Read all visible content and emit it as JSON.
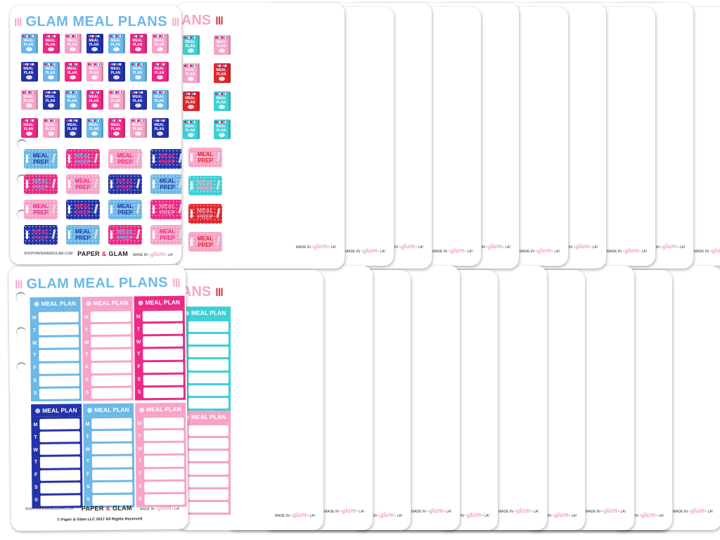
{
  "product": {
    "title": "GLAM MEAL PLANS",
    "title_fragment": "ANS",
    "title_fragment_s": "S",
    "cutlery_icon": "fork-knife-spoon-icon"
  },
  "palette": {
    "light_blue": "#6cb8e6",
    "pink": "#f7a3c8",
    "hot_pink": "#ec2a86",
    "navy": "#2433a8",
    "teal": "#3fd0d4",
    "purple": "#b56ad8",
    "red": "#e0262e",
    "orange": "#f58220",
    "plum": "#7a1d55",
    "tan": "#c49a62",
    "mint": "#5fd98e",
    "dark_teal": "#179c96",
    "black": "#1a1a1a"
  },
  "top_sheets": {
    "book_label": "MEAL PLAN",
    "prep_label_line1": "MEAL",
    "prep_label_line2": "PREP",
    "front": {
      "book_colors": [
        [
          "#6cb8e6",
          "#ec2a86",
          "#f7a3c8",
          "#2433a8",
          "#6cb8e6",
          "#ec2a86",
          "#f7a3c8"
        ],
        [
          "#2433a8",
          "#6cb8e6",
          "#ec2a86",
          "#f7a3c8",
          "#2433a8",
          "#6cb8e6",
          "#ec2a86"
        ],
        [
          "#f7a3c8",
          "#2433a8",
          "#6cb8e6",
          "#ec2a86",
          "#f7a3c8",
          "#2433a8",
          "#6cb8e6"
        ],
        [
          "#ec2a86",
          "#f7a3c8",
          "#2433a8",
          "#6cb8e6",
          "#ec2a86",
          "#f7a3c8",
          "#2433a8"
        ]
      ],
      "prep_stickers": [
        {
          "bg": "#6cb8e6",
          "fg": "#2433a8"
        },
        {
          "bg": "#ec2a86",
          "fg": "#6cb8e6"
        },
        {
          "bg": "#f7a3c8",
          "fg": "#ec2a86"
        },
        {
          "bg": "#2433a8",
          "fg": "#ec2a86"
        },
        {
          "bg": "#ec2a86",
          "fg": "#6cb8e6"
        },
        {
          "bg": "#f7a3c8",
          "fg": "#ec2a86"
        },
        {
          "bg": "#2433a8",
          "fg": "#ec2a86"
        },
        {
          "bg": "#6cb8e6",
          "fg": "#2433a8"
        },
        {
          "bg": "#f7a3c8",
          "fg": "#ec2a86"
        },
        {
          "bg": "#2433a8",
          "fg": "#ec2a86"
        },
        {
          "bg": "#6cb8e6",
          "fg": "#2433a8"
        },
        {
          "bg": "#ec2a86",
          "fg": "#f7a3c8"
        },
        {
          "bg": "#2433a8",
          "fg": "#ec2a86"
        },
        {
          "bg": "#6cb8e6",
          "fg": "#2433a8"
        },
        {
          "bg": "#ec2a86",
          "fg": "#6cb8e6"
        },
        {
          "bg": "#f7a3c8",
          "fg": "#ec2a86"
        }
      ]
    },
    "back": [
      {
        "title_color": "#f7a3c8",
        "cutlery_color": "#e0262e",
        "colors": [
          "#3fd0d4",
          "#f7a3c8",
          "#e0262e",
          "#3fd0d4"
        ],
        "prep": [
          {
            "bg": "#f7a3c8",
            "fg": "#e0262e"
          },
          {
            "bg": "#3fd0d4",
            "fg": "#f7a3c8"
          },
          {
            "bg": "#e0262e",
            "fg": "#f7a3c8"
          },
          {
            "bg": "#f7a3c8",
            "fg": "#e0262e"
          }
        ]
      },
      {
        "title_color": "#5fd98e",
        "cutlery_color": "#b56ad8",
        "colors": [
          "#b56ad8",
          "#3fd0d4",
          "#5fd98e",
          "#b56ad8"
        ],
        "prep": [
          {
            "bg": "#ec2a86",
            "fg": "#3fd0d4"
          },
          {
            "bg": "#5fd98e",
            "fg": "#ec2a86"
          },
          {
            "bg": "#b56ad8",
            "fg": "#5fd98e"
          },
          {
            "bg": "#3fd0d4",
            "fg": "#b56ad8"
          }
        ]
      },
      {
        "title_color": "#b56ad8",
        "cutlery_color": "#3fd0d4",
        "colors": [
          "#3fd0d4",
          "#ec2a86",
          "#b56ad8",
          "#3fd0d4"
        ],
        "prep": [
          {
            "bg": "#ec2a86",
            "fg": "#b56ad8"
          },
          {
            "bg": "#b56ad8",
            "fg": "#ec2a86"
          },
          {
            "bg": "#3fd0d4",
            "fg": "#b56ad8"
          },
          {
            "bg": "#ec2a86",
            "fg": "#3fd0d4"
          }
        ]
      },
      {
        "title_color": "#3fd0d4",
        "cutlery_color": "#ec2a86",
        "colors": [
          "#f7a3c8",
          "#ec2a86",
          "#3fd0d4",
          "#f7a3c8"
        ],
        "prep": [
          {
            "bg": "#ec2a86",
            "fg": "#f7a3c8"
          },
          {
            "bg": "#3fd0d4",
            "fg": "#e0262e"
          },
          {
            "bg": "#f7a3c8",
            "fg": "#3fd0d4"
          },
          {
            "bg": "#f7a3c8",
            "fg": "#ec2a86"
          }
        ]
      },
      {
        "title_color": "#f06fb5",
        "cutlery_color": "#ec2a86",
        "colors": [
          "#3fd0d4",
          "#f58220",
          "#ec2a86",
          "#3fd0d4"
        ],
        "prep": [
          {
            "bg": "#f58220",
            "fg": "#f7a3c8"
          },
          {
            "bg": "#ec2a86",
            "fg": "#3fd0d4"
          },
          {
            "bg": "#ec2a86",
            "fg": "#f58220"
          },
          {
            "bg": "#3fd0d4",
            "fg": "#ec2a86"
          }
        ]
      },
      {
        "title_color": "#2433a8",
        "cutlery_color": "#e0262e",
        "colors": [
          "#6cb8e6",
          "#ec2a86",
          "#2433a8",
          "#e0262e"
        ],
        "prep": [
          {
            "bg": "#f06fb5",
            "fg": "#2433a8"
          },
          {
            "bg": "#2433a8",
            "fg": "#e0262e"
          },
          {
            "bg": "#e0262e",
            "fg": "#2433a8"
          },
          {
            "bg": "#6cb8e6",
            "fg": "#f7a3c8"
          }
        ]
      },
      {
        "title_color": "#ec2a86",
        "cutlery_color": "#f7a3c8",
        "colors": [
          "#f7a3c8",
          "#ec2a86",
          "#1a1a1a",
          "#ec2a86"
        ],
        "prep": [
          {
            "bg": "#ec2a86",
            "fg": "#1a1a1a"
          },
          {
            "bg": "#f7a3c8",
            "fg": "#ec2a86"
          },
          {
            "bg": "#1a1a1a",
            "fg": "#ec2a86"
          },
          {
            "bg": "#ec2a86",
            "fg": "#1a1a1a"
          }
        ]
      },
      {
        "title_color": "#179c96",
        "cutlery_color": "#f58220",
        "colors": [
          "#ec2a86",
          "#179c96",
          "#f58220",
          "#7a1d55"
        ],
        "prep": [
          {
            "bg": "#ec2a86",
            "fg": "#7a1d55"
          },
          {
            "bg": "#179c96",
            "fg": "#ec2a86"
          },
          {
            "bg": "#f58220",
            "fg": "#179c96"
          },
          {
            "bg": "#7a1d55",
            "fg": "#ec2a86"
          }
        ]
      },
      {
        "title_color": "#f58220",
        "cutlery_color": "#b56ad8",
        "colors": [
          "#ec2a86",
          "#f58220",
          "#b56ad8",
          "#f58220"
        ],
        "prep": [
          {
            "bg": "#f58220",
            "fg": "#1a1a1a"
          },
          {
            "bg": "#ec2a86",
            "fg": "#f58220"
          },
          {
            "bg": "#b56ad8",
            "fg": "#f58220"
          },
          {
            "bg": "#f58220",
            "fg": "#1a1a1a"
          }
        ]
      },
      {
        "title_color": "#7a1d55",
        "cutlery_color": "#c49a62",
        "colors": [
          "#c49a62",
          "#ec2a86",
          "#7a1d55",
          "#c49a62"
        ],
        "prep": [
          {
            "bg": "#ec2a86",
            "fg": "#7a1d55"
          },
          {
            "bg": "#7a1d55",
            "fg": "#ec2a86"
          },
          {
            "bg": "#c49a62",
            "fg": "#f58220"
          },
          {
            "bg": "#f58220",
            "fg": "#7a1d55"
          }
        ]
      },
      {
        "title_color": "#e0262e",
        "cutlery_color": "#5fd98e",
        "colors": [
          "#ec2a86",
          "#e0262e",
          "#5fd98e",
          "#e0262e"
        ],
        "prep": [
          {
            "bg": "#e0262e",
            "fg": "#5fd98e"
          },
          {
            "bg": "#ec2a86",
            "fg": "#5fd98e"
          },
          {
            "bg": "#5fd98e",
            "fg": "#ec2a86"
          },
          {
            "bg": "#e0262e",
            "fg": "#5fd98e"
          }
        ]
      }
    ]
  },
  "bottom_sheets": {
    "plan_label": "MEAL PLAN",
    "days": [
      "M",
      "T",
      "W",
      "T",
      "F",
      "S",
      "S"
    ],
    "front_plans": [
      {
        "color": "#6cb8e6"
      },
      {
        "color": "#f7a3c8"
      },
      {
        "color": "#ec2a86"
      },
      {
        "color": "#2433a8"
      },
      {
        "color": "#6cb8e6"
      },
      {
        "color": "#f7a3c8"
      }
    ],
    "back": [
      {
        "title_color": "#f7a3c8",
        "cutlery_color": "#e0262e",
        "top": "#3fd0d4",
        "bottom": "#f7a3c8"
      },
      {
        "title_color": "#5fd98e",
        "cutlery_color": "#b56ad8",
        "top": "#b56ad8",
        "bottom": "#3fd0d4"
      },
      {
        "title_color": "#b56ad8",
        "cutlery_color": "#3fd0d4",
        "top": "#3fd0d4",
        "bottom": "#f06fb5"
      },
      {
        "title_color": "#3fd0d4",
        "cutlery_color": "#ec2a86",
        "top": "#f06fb5",
        "bottom": "#f7a3c8"
      },
      {
        "title_color": "#f06fb5",
        "cutlery_color": "#ec2a86",
        "top": "#ec2a86",
        "bottom": "#3fd0d4"
      },
      {
        "title_color": "#2433a8",
        "cutlery_color": "#e0262e",
        "top": "#e0262e",
        "bottom": "#6cb8e6"
      },
      {
        "title_color": "#ec2a86",
        "cutlery_color": "#f7a3c8",
        "top": "#f7a3c8",
        "bottom": "#ec2a86"
      },
      {
        "title_color": "#179c96",
        "cutlery_color": "#f58220",
        "top": "#f58220",
        "bottom": "#7a1d55"
      },
      {
        "title_color": "#f58220",
        "cutlery_color": "#b56ad8",
        "top": "#ec2a86",
        "bottom": "#f58220"
      },
      {
        "title_color": "#7a1d55",
        "cutlery_color": "#c49a62",
        "top": "#c49a62",
        "bottom": "#f58220"
      },
      {
        "title_color": "#e0262e",
        "cutlery_color": "#5fd98e",
        "top": "#ec2a86",
        "bottom": "#e0262e"
      }
    ]
  },
  "footer": {
    "shop_url": "SHOP.PAPERANDGLAM.COM",
    "brand_left": "PAPER",
    "brand_amp": "&",
    "brand_right": "GLAM",
    "made_in_prefix": "MADE IN",
    "made_in_script": "glam",
    "made_in_suffix": "LA!",
    "copyright": "© Paper & Glam LLC 2017 All Rights Reserved"
  },
  "title_color": "#6cb8e6",
  "title_cutlery_color": "#f7a3c8"
}
